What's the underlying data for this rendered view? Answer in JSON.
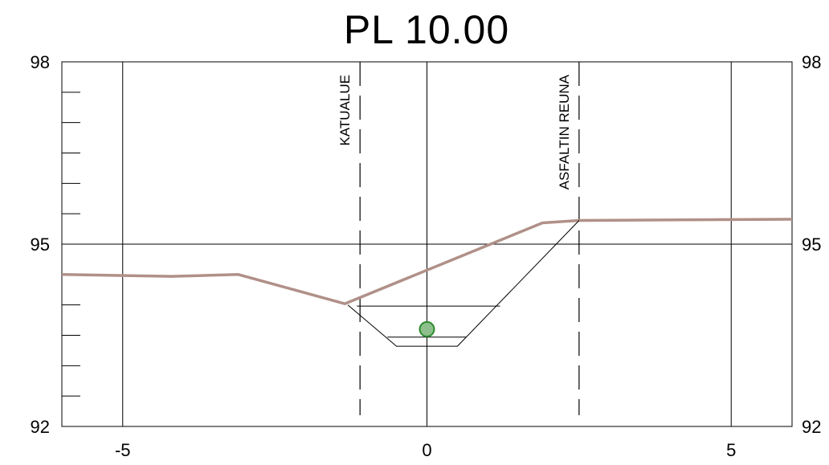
{
  "title": "PL 10.00",
  "chart_data": {
    "type": "line",
    "title": "PL 10.00",
    "xlim": [
      -6,
      6
    ],
    "ylim": [
      92,
      98
    ],
    "x_ticks": [
      -5,
      0,
      5
    ],
    "x_tick_labels": [
      "-5",
      "0",
      "5"
    ],
    "y_ticks": [
      92,
      95,
      98
    ],
    "y_tick_labels": [
      "92",
      "95",
      "98"
    ],
    "grid": true,
    "series": [
      {
        "role": "ground-profile",
        "color": "#b09088",
        "points": [
          [
            -6.0,
            94.5
          ],
          [
            -4.2,
            94.47
          ],
          [
            -3.1,
            94.5
          ],
          [
            -1.35,
            94.02
          ],
          [
            1.9,
            95.35
          ],
          [
            2.5,
            95.39
          ],
          [
            6.0,
            95.41
          ]
        ]
      },
      {
        "role": "ditch-design",
        "color": "#000000",
        "points": [
          [
            -1.3,
            94.0
          ],
          [
            -0.5,
            93.32
          ],
          [
            0.5,
            93.32
          ],
          [
            2.5,
            95.39
          ]
        ]
      }
    ],
    "design_levels": [
      {
        "y": 93.98,
        "x_range": [
          -1.15,
          1.2
        ]
      },
      {
        "y": 93.47,
        "x_range": [
          -0.65,
          0.65
        ]
      }
    ],
    "pipe": {
      "x": 0.0,
      "y": 93.6,
      "color": "#8dc08d",
      "stroke": "#2e8b2e"
    },
    "markers": [
      {
        "x": -1.1,
        "label": "KATUALUE"
      },
      {
        "x": 2.5,
        "label": "ASFALTIN REUNA"
      }
    ]
  }
}
